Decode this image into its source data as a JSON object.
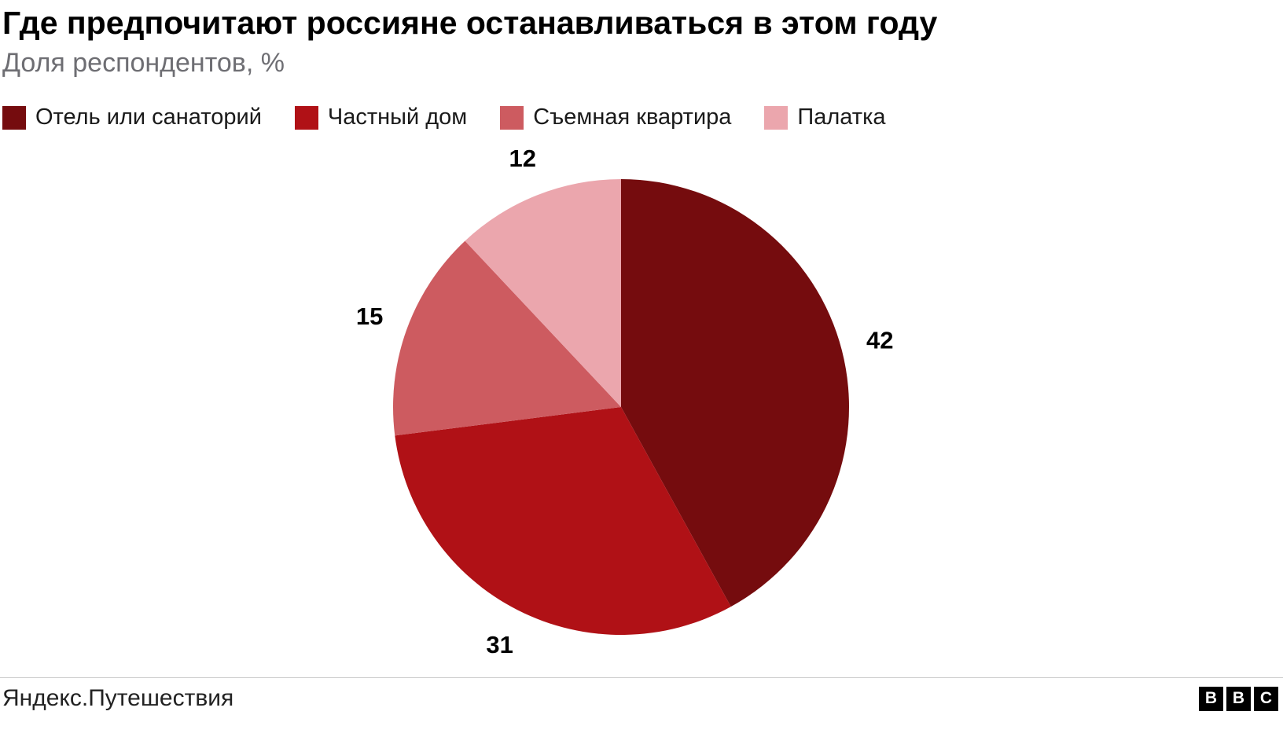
{
  "header": {
    "title": "Где предпочитают россияне останавливаться в этом году",
    "subtitle": "Доля респондентов, %"
  },
  "chart_data": {
    "type": "pie",
    "title": "Где предпочитают россияне останавливаться в этом году",
    "subtitle": "Доля респондентов, %",
    "unit": "%",
    "series": [
      {
        "name": "Отель или санаторий",
        "value": 42,
        "color": "#750c0e"
      },
      {
        "name": "Частный дом",
        "value": 31,
        "color": "#b01116"
      },
      {
        "name": "Съемная квартира",
        "value": 15,
        "color": "#cd5b60"
      },
      {
        "name": "Палатка",
        "value": 12,
        "color": "#eba6ad"
      }
    ],
    "start_angle_deg": 0,
    "direction": "clockwise",
    "data_labels": "outside",
    "legend_position": "top"
  },
  "footer": {
    "source": "Яндекс.Путешествия",
    "logo_letters": [
      "B",
      "B",
      "C"
    ]
  }
}
